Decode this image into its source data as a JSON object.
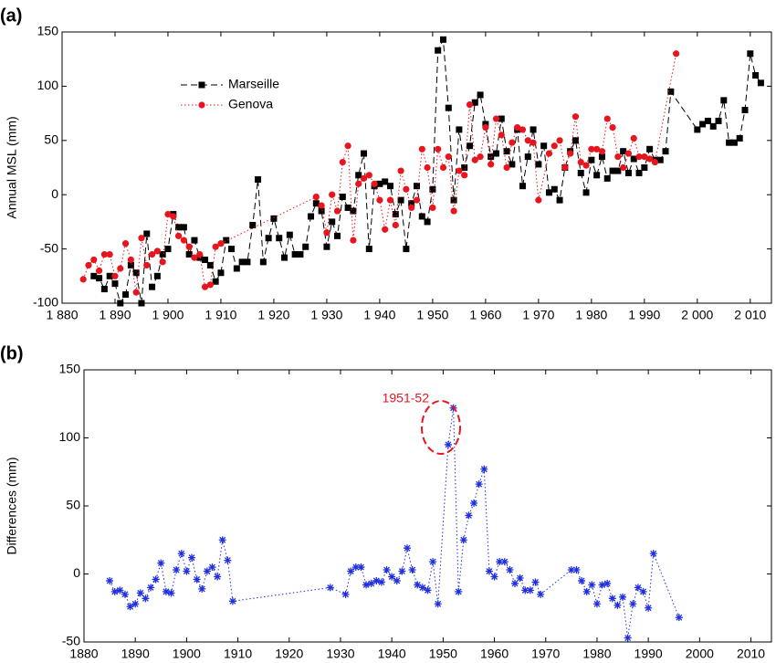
{
  "chart_data": [
    {
      "type": "line",
      "panel_label": "(a)",
      "ylabel": "Annual MSL (mm)",
      "xlim": [
        1880,
        2014
      ],
      "xticks": [
        {
          "value": 1880,
          "label": "1 880"
        },
        {
          "value": 1890,
          "label": "1 890"
        },
        {
          "value": 1900,
          "label": "1 900"
        },
        {
          "value": 1910,
          "label": "1 910"
        },
        {
          "value": 1920,
          "label": "1 920"
        },
        {
          "value": 1930,
          "label": "1 930"
        },
        {
          "value": 1940,
          "label": "1 940"
        },
        {
          "value": 1950,
          "label": "1 950"
        },
        {
          "value": 1960,
          "label": "1 960"
        },
        {
          "value": 1970,
          "label": "1 970"
        },
        {
          "value": 1980,
          "label": "1 980"
        },
        {
          "value": 1990,
          "label": "1 990"
        },
        {
          "value": 2000,
          "label": "2 000"
        },
        {
          "value": 2010,
          "label": "2 010"
        }
      ],
      "ylim": [
        -100,
        150
      ],
      "yticks": [
        -100,
        -50,
        0,
        50,
        100,
        150
      ],
      "legend": "upper left",
      "series": [
        {
          "name": "Marseille",
          "color": "#000000",
          "linestyle": "dashed",
          "marker": "square",
          "x": [
            1886,
            1887,
            1888,
            1889,
            1890,
            1891,
            1892,
            1893,
            1894,
            1895,
            1896,
            1897,
            1898,
            1899,
            1900,
            1901,
            1902,
            1903,
            1904,
            1905,
            1906,
            1907,
            1908,
            1909,
            1910,
            1911,
            1912,
            1913,
            1914,
            1915,
            1916,
            1917,
            1918,
            1919,
            1920,
            1921,
            1922,
            1923,
            1924,
            1925,
            1926,
            1927,
            1928,
            1929,
            1930,
            1931,
            1932,
            1933,
            1934,
            1935,
            1936,
            1937,
            1938,
            1939,
            1940,
            1941,
            1942,
            1943,
            1944,
            1945,
            1946,
            1947,
            1948,
            1949,
            1950,
            1951,
            1952,
            1953,
            1954,
            1955,
            1956,
            1957,
            1958,
            1959,
            1960,
            1961,
            1962,
            1963,
            1964,
            1965,
            1966,
            1967,
            1968,
            1969,
            1970,
            1971,
            1972,
            1973,
            1974,
            1975,
            1976,
            1977,
            1978,
            1979,
            1980,
            1981,
            1982,
            1983,
            1984,
            1985,
            1986,
            1987,
            1988,
            1989,
            1990,
            1991,
            1992,
            1993,
            1994,
            1995,
            2000,
            2001,
            2002,
            2003,
            2004,
            2005,
            2006,
            2007,
            2008,
            2009,
            2010,
            2011,
            2012
          ],
          "values": [
            -75,
            -77,
            -87,
            -75,
            -82,
            -100,
            -92,
            -65,
            -72,
            -100,
            -36,
            -85,
            -75,
            -55,
            -50,
            -18,
            -30,
            -30,
            -55,
            -42,
            -58,
            -60,
            -65,
            -80,
            -72,
            -42,
            -50,
            -68,
            -62,
            -62,
            -28,
            14,
            -62,
            -40,
            -22,
            -40,
            -58,
            -37,
            -55,
            -55,
            -48,
            -20,
            -8,
            -15,
            -48,
            -25,
            -38,
            -2,
            -12,
            -15,
            18,
            38,
            -50,
            8,
            10,
            12,
            8,
            -18,
            -5,
            -50,
            -8,
            8,
            -20,
            -25,
            5,
            133,
            143,
            80,
            -5,
            60,
            25,
            45,
            85,
            92,
            65,
            35,
            38,
            70,
            40,
            28,
            60,
            8,
            35,
            60,
            28,
            45,
            2,
            5,
            -5,
            25,
            40,
            50,
            20,
            2,
            32,
            18,
            35,
            15,
            22,
            22,
            40,
            20,
            33,
            20,
            25,
            42,
            32,
            32,
            40,
            95,
            60,
            65,
            68,
            63,
            68,
            87,
            48,
            48,
            52,
            78,
            130,
            110,
            103
          ]
        },
        {
          "name": "Genova",
          "color": "#e8141e",
          "linestyle": "dotted",
          "marker": "circle",
          "x": [
            1884,
            1885,
            1886,
            1887,
            1888,
            1889,
            1890,
            1891,
            1892,
            1893,
            1894,
            1895,
            1896,
            1897,
            1898,
            1899,
            1900,
            1901,
            1902,
            1903,
            1904,
            1905,
            1906,
            1907,
            1908,
            1909,
            1910,
            1928,
            1929,
            1930,
            1931,
            1932,
            1933,
            1934,
            1935,
            1936,
            1937,
            1938,
            1939,
            1940,
            1941,
            1942,
            1943,
            1944,
            1945,
            1946,
            1947,
            1948,
            1949,
            1950,
            1951,
            1952,
            1953,
            1954,
            1955,
            1956,
            1957,
            1958,
            1959,
            1960,
            1961,
            1962,
            1963,
            1964,
            1965,
            1966,
            1967,
            1968,
            1969,
            1970,
            1972,
            1973,
            1974,
            1975,
            1976,
            1977,
            1978,
            1979,
            1980,
            1981,
            1982,
            1983,
            1984,
            1985,
            1986,
            1987,
            1988,
            1989,
            1990,
            1991,
            1992,
            1996
          ],
          "values": [
            -78,
            -65,
            -60,
            -70,
            -55,
            -55,
            -75,
            -68,
            -45,
            -60,
            -90,
            -40,
            -65,
            -55,
            -52,
            -62,
            -18,
            -20,
            -38,
            -42,
            -48,
            -58,
            -55,
            -85,
            -83,
            -48,
            -45,
            -2,
            -10,
            -35,
            0,
            -15,
            30,
            45,
            -42,
            10,
            15,
            18,
            10,
            -5,
            -32,
            -5,
            -28,
            22,
            5,
            -12,
            -5,
            42,
            25,
            -12,
            42,
            25,
            35,
            -15,
            22,
            18,
            83,
            32,
            35,
            62,
            28,
            70,
            55,
            25,
            48,
            62,
            60,
            50,
            48,
            -5,
            38,
            45,
            50,
            25,
            38,
            72,
            30,
            27,
            42,
            42,
            40,
            70,
            62,
            35,
            25,
            38,
            52,
            35,
            35,
            33,
            30,
            130
          ]
        }
      ]
    },
    {
      "type": "line",
      "panel_label": "(b)",
      "ylabel": "Differences (mm)",
      "annotation": "1951-52",
      "xlim": [
        1880,
        2014
      ],
      "xticks": [
        1880,
        1890,
        1900,
        1910,
        1920,
        1930,
        1940,
        1950,
        1960,
        1970,
        1980,
        1990,
        2000,
        2010
      ],
      "ylim": [
        -50,
        150
      ],
      "yticks": [
        -50,
        0,
        50,
        100,
        150
      ],
      "series": [
        {
          "color": "#1f2fe0",
          "linestyle": "dotted",
          "marker": "star",
          "x": [
            1885,
            1886,
            1887,
            1888,
            1889,
            1890,
            1891,
            1892,
            1893,
            1894,
            1895,
            1896,
            1897,
            1898,
            1899,
            1900,
            1901,
            1902,
            1903,
            1904,
            1905,
            1906,
            1907,
            1908,
            1909,
            1928,
            1931,
            1932,
            1933,
            1934,
            1935,
            1936,
            1937,
            1938,
            1939,
            1940,
            1941,
            1942,
            1943,
            1944,
            1945,
            1946,
            1947,
            1948,
            1949,
            1951,
            1952,
            1953,
            1954,
            1955,
            1956,
            1957,
            1958,
            1959,
            1960,
            1961,
            1962,
            1963,
            1964,
            1965,
            1966,
            1967,
            1968,
            1969,
            1975,
            1976,
            1977,
            1978,
            1979,
            1980,
            1981,
            1982,
            1983,
            1984,
            1985,
            1986,
            1987,
            1988,
            1989,
            1990,
            1991,
            1996
          ],
          "values": [
            -5,
            -13,
            -12,
            -15,
            -24,
            -22,
            -14,
            -18,
            -10,
            -4,
            8,
            -13,
            -14,
            3,
            15,
            2,
            12,
            -4,
            -11,
            2,
            5,
            -2,
            25,
            10,
            -20,
            -10,
            -15,
            2,
            5,
            5,
            -8,
            -7,
            -5,
            -6,
            3,
            -2,
            -5,
            2,
            19,
            3,
            -8,
            -10,
            -12,
            9,
            -22,
            95,
            122,
            -13,
            25,
            43,
            52,
            66,
            77,
            2,
            -2,
            9,
            9,
            3,
            -7,
            -3,
            -12,
            -12,
            -6,
            -15,
            3,
            3,
            -5,
            -13,
            -8,
            -22,
            -8,
            -7,
            -18,
            -23,
            -17,
            -47,
            -22,
            -10,
            -13,
            -25,
            15,
            -32
          ]
        }
      ]
    }
  ]
}
